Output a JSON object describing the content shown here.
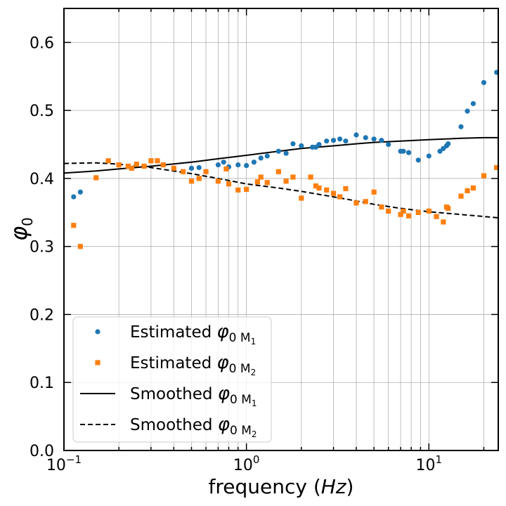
{
  "chart_data": {
    "type": "scatter",
    "xscale": "log",
    "xlim": [
      0.1,
      24
    ],
    "ylim": [
      0.0,
      0.65
    ],
    "grid": true,
    "xlabel": "frequency (Hz)",
    "ylabel": "φ0",
    "y_ticks": [
      "0.0",
      "0.1",
      "0.2",
      "0.3",
      "0.4",
      "0.5",
      "0.6"
    ],
    "x_ticks": [
      {
        "base": "10",
        "exp": "−1"
      },
      {
        "base": "10",
        "exp": "0"
      },
      {
        "base": "10",
        "exp": "1"
      }
    ],
    "legend_position": "lower-left",
    "series": [
      {
        "name": "Estimated φ0 M1",
        "label_main": "Estimated ",
        "label_sym": "φ",
        "label_sub": "0 M",
        "label_subsub": "1",
        "kind": "scatter",
        "marker": "circle",
        "color": "#1f77b4",
        "x": [
          0.113,
          0.123,
          0.5,
          0.55,
          0.7,
          0.75,
          0.8,
          0.9,
          1.0,
          1.1,
          1.2,
          1.3,
          1.5,
          1.65,
          1.8,
          2.0,
          2.3,
          2.4,
          2.5,
          2.75,
          3.0,
          3.25,
          3.5,
          4.0,
          4.5,
          5.0,
          5.5,
          6.0,
          7.0,
          7.25,
          7.75,
          8.75,
          10.0,
          11.5,
          12.0,
          12.5,
          12.75,
          15.0,
          16.25,
          17.5,
          20.0,
          23.5
        ],
        "y": [
          0.373,
          0.38,
          0.415,
          0.416,
          0.42,
          0.424,
          0.417,
          0.42,
          0.419,
          0.424,
          0.43,
          0.433,
          0.44,
          0.437,
          0.451,
          0.448,
          0.446,
          0.446,
          0.45,
          0.455,
          0.456,
          0.458,
          0.455,
          0.464,
          0.46,
          0.458,
          0.456,
          0.45,
          0.44,
          0.44,
          0.438,
          0.427,
          0.433,
          0.44,
          0.444,
          0.448,
          0.451,
          0.476,
          0.499,
          0.51,
          0.541,
          0.556
        ]
      },
      {
        "name": "Estimated φ0 M2",
        "label_main": "Estimated ",
        "label_sym": "φ",
        "label_sub": "0 M",
        "label_subsub": "2",
        "kind": "scatter",
        "marker": "square",
        "color": "#ff7f0e",
        "x": [
          0.113,
          0.123,
          0.15,
          0.175,
          0.2,
          0.225,
          0.235,
          0.25,
          0.275,
          0.3,
          0.325,
          0.35,
          0.4,
          0.45,
          0.5,
          0.55,
          0.6,
          0.7,
          0.775,
          0.8,
          0.9,
          1.0,
          1.15,
          1.2,
          1.3,
          1.5,
          1.65,
          1.8,
          2.0,
          2.25,
          2.4,
          2.5,
          2.75,
          3.0,
          3.25,
          3.5,
          4.0,
          4.5,
          5.0,
          5.5,
          6.0,
          7.0,
          7.25,
          7.75,
          8.75,
          10.0,
          11.0,
          12.0,
          12.5,
          12.75,
          15.0,
          16.25,
          17.5,
          20.0,
          23.5
        ],
        "y": [
          0.331,
          0.3,
          0.401,
          0.426,
          0.42,
          0.418,
          0.415,
          0.421,
          0.418,
          0.426,
          0.426,
          0.42,
          0.415,
          0.41,
          0.396,
          0.4,
          0.41,
          0.396,
          0.414,
          0.392,
          0.383,
          0.384,
          0.395,
          0.402,
          0.394,
          0.41,
          0.396,
          0.402,
          0.371,
          0.402,
          0.389,
          0.386,
          0.383,
          0.378,
          0.373,
          0.385,
          0.364,
          0.366,
          0.38,
          0.358,
          0.352,
          0.347,
          0.352,
          0.345,
          0.35,
          0.352,
          0.344,
          0.336,
          0.358,
          0.356,
          0.374,
          0.382,
          0.386,
          0.404,
          0.416
        ]
      },
      {
        "name": "Smoothed φ0 M1",
        "label_main": "Smoothed ",
        "label_sym": "φ",
        "label_sub": "0 M",
        "label_subsub": "1",
        "kind": "line",
        "dash": "solid",
        "color": "#000000",
        "x": [
          0.1,
          0.15,
          0.2,
          0.3,
          0.5,
          0.7,
          1.0,
          1.5,
          2.0,
          3.0,
          4.0,
          5.0,
          7.0,
          10.0,
          15.0,
          20.0,
          24.0
        ],
        "y": [
          0.408,
          0.411,
          0.414,
          0.418,
          0.424,
          0.429,
          0.434,
          0.44,
          0.444,
          0.448,
          0.451,
          0.453,
          0.455,
          0.457,
          0.459,
          0.46,
          0.46
        ]
      },
      {
        "name": "Smoothed φ0 M2",
        "label_main": "Smoothed ",
        "label_sym": "φ",
        "label_sub": "0 M",
        "label_subsub": "2",
        "kind": "line",
        "dash": "dashed",
        "color": "#000000",
        "x": [
          0.1,
          0.15,
          0.2,
          0.3,
          0.5,
          0.7,
          1.0,
          1.5,
          2.0,
          3.0,
          4.0,
          5.0,
          7.0,
          10.0,
          15.0,
          20.0,
          24.0
        ],
        "y": [
          0.422,
          0.423,
          0.421,
          0.416,
          0.407,
          0.4,
          0.392,
          0.386,
          0.381,
          0.373,
          0.367,
          0.362,
          0.356,
          0.351,
          0.347,
          0.344,
          0.342
        ]
      }
    ]
  }
}
